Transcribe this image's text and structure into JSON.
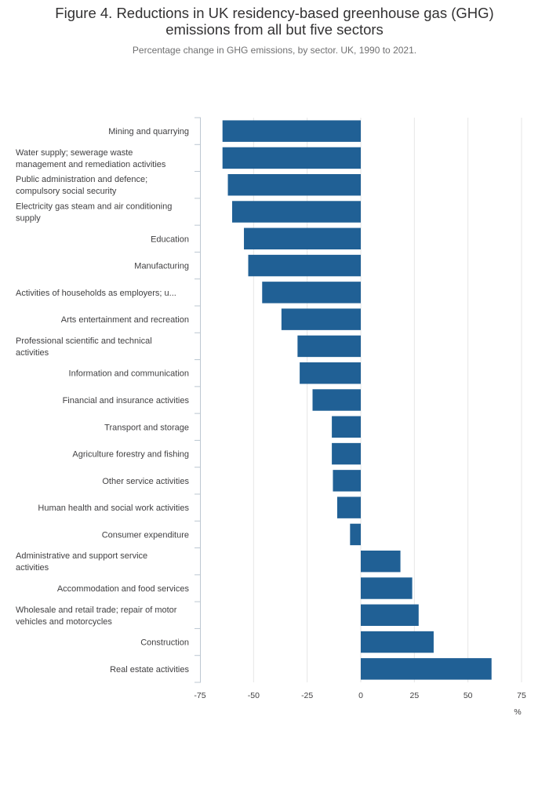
{
  "title_line1": "Figure 4. Reductions in UK residency-based greenhouse gas (GHG)",
  "title_line2": "emissions from all but five sectors",
  "subtitle": "Percentage change in GHG emissions, by sector. UK, 1990 to 2021.",
  "colors": {
    "bar": "#206095",
    "grid": "#e6e6e6",
    "axis": "#bcc7d1"
  },
  "chart_data": {
    "type": "bar",
    "orientation": "horizontal",
    "title": "Figure 4. Reductions in UK residency-based greenhouse gas (GHG) emissions from all but five sectors",
    "subtitle": "Percentage change in GHG emissions, by sector. UK, 1990 to 2021.",
    "xlabel": "%",
    "ylabel": "",
    "xlim": [
      -75,
      75
    ],
    "xticks": [
      -75,
      -50,
      -25,
      0,
      25,
      50,
      75
    ],
    "grid": true,
    "categories": [
      [
        "Mining and quarrying"
      ],
      [
        "Water supply; sewerage waste",
        "management and remediation activities"
      ],
      [
        "Public administration and defence;",
        "compulsory social security"
      ],
      [
        "Electricity gas steam and air conditioning",
        "supply"
      ],
      [
        "Education"
      ],
      [
        "Manufacturing"
      ],
      [
        "Activities of households as employers; u..."
      ],
      [
        "Arts entertainment and recreation"
      ],
      [
        "Professional scientific and technical",
        "activities"
      ],
      [
        "Information and communication"
      ],
      [
        "Financial and insurance activities"
      ],
      [
        "Transport and storage"
      ],
      [
        "Agriculture forestry and fishing"
      ],
      [
        "Other service activities"
      ],
      [
        "Human health and social work activities"
      ],
      [
        "Consumer expenditure"
      ],
      [
        "Administrative and support service",
        "activities"
      ],
      [
        "Accommodation and food services"
      ],
      [
        "Wholesale and retail trade; repair of motor",
        "vehicles and motorcycles"
      ],
      [
        "Construction"
      ],
      [
        "Real estate activities"
      ]
    ],
    "values": [
      -64.5,
      -64.5,
      -62,
      -60,
      -54.5,
      -52.5,
      -46,
      -37,
      -29.5,
      -28.5,
      -22.5,
      -13.5,
      -13.5,
      -13,
      -11,
      -5,
      18.5,
      24,
      27,
      34,
      61
    ]
  }
}
